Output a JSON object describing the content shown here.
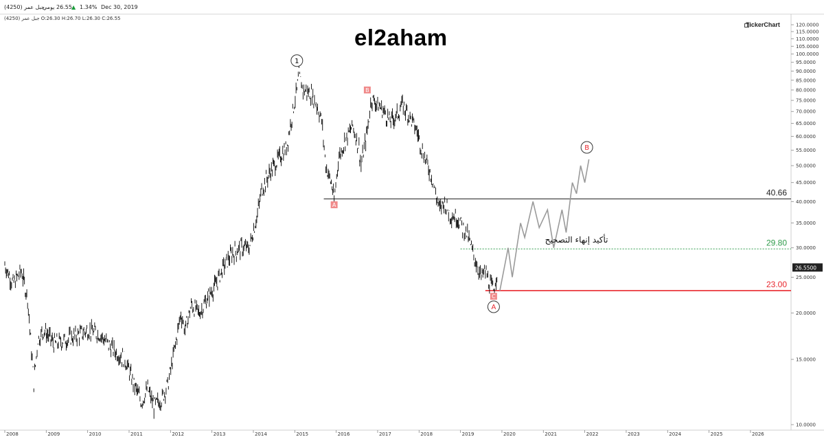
{
  "header": {
    "name": "(4250) جبل عمر",
    "period": "يومي",
    "last": "26.55",
    "change": "1.34%",
    "date": "Dec 30, 2019",
    "ohlc": "(4250) جبل عمر  O:26.30  H:26.70  L:26.30  C:26.55"
  },
  "watermark": "el2aham",
  "brand": "TickerChart",
  "colors": {
    "candles": "#000000",
    "projection": "#9a9a9a",
    "support": "#e8262d",
    "resistance": "#222222",
    "confirm": "#2e9b4a",
    "price_tag": "#222222"
  },
  "chart_data": {
    "type": "line",
    "y_scale": "log",
    "ylim": [
      10,
      120
    ],
    "y_ticks": [
      "10.0000",
      "15.0000",
      "20.0000",
      "25.0000",
      "30.0000",
      "35.0000",
      "40.0000",
      "45.0000",
      "50.0000",
      "55.0000",
      "60.0000",
      "65.0000",
      "70.0000",
      "75.0000",
      "80.0000",
      "85.0000",
      "90.0000",
      "95.0000",
      "100.0000",
      "105.0000",
      "110.0000",
      "115.0000",
      "120.0000"
    ],
    "x_ticks": [
      "2008",
      "2009",
      "2010",
      "2011",
      "2012",
      "2013",
      "2014",
      "2015",
      "2016",
      "2017",
      "2018",
      "2019",
      "2020",
      "2021",
      "2022",
      "2023",
      "2024",
      "2025",
      "2026"
    ],
    "series": [
      {
        "style": "price",
        "x": [
          2008.0,
          2008.2,
          2008.4,
          2008.55,
          2008.7,
          2008.8,
          2008.95,
          2009.2,
          2009.5,
          2009.8,
          2010.0,
          2010.3,
          2010.6,
          2010.9,
          2011.1,
          2011.3,
          2011.45,
          2011.6,
          2011.8,
          2011.95,
          2012.1,
          2012.25,
          2012.35,
          2012.5,
          2012.7,
          2012.9,
          2013.1,
          2013.3,
          2013.5,
          2013.7,
          2013.9,
          2014.1,
          2014.2,
          2014.4,
          2014.6,
          2014.8,
          2014.95,
          2015.05,
          2015.1,
          2015.2,
          2015.4,
          2015.55,
          2015.65,
          2015.75,
          2015.9,
          2015.95,
          2016.05,
          2016.2,
          2016.4,
          2016.55,
          2016.6,
          2016.75,
          2016.85,
          2017.0,
          2017.15,
          2017.3,
          2017.45,
          2017.6,
          2017.8,
          2017.95,
          2018.1,
          2018.3,
          2018.4,
          2018.5,
          2018.6,
          2018.75,
          2018.95,
          2019.05,
          2019.15,
          2019.3,
          2019.4,
          2019.5,
          2019.6,
          2019.7,
          2019.8,
          2019.9
        ],
        "y": [
          27,
          24,
          26,
          22,
          13,
          17,
          18,
          16.5,
          17,
          17.5,
          18,
          17.5,
          16,
          15,
          13,
          11.5,
          12.5,
          11.2,
          11.8,
          13,
          16,
          20,
          18,
          21,
          20,
          22,
          24,
          27,
          29,
          30,
          30,
          37,
          43,
          48,
          52,
          56,
          70,
          80,
          88,
          80,
          78,
          72,
          66,
          50,
          44,
          40,
          52,
          58,
          64,
          56,
          50,
          62,
          76,
          73,
          70,
          66,
          68,
          73,
          67,
          62,
          54,
          47,
          42,
          38,
          40,
          37,
          36,
          34,
          33,
          29,
          27,
          25,
          26,
          24,
          23,
          26.55
        ]
      },
      {
        "name": "projection",
        "style": "projection",
        "x": [
          2019.95,
          2020.15,
          2020.25,
          2020.45,
          2020.55,
          2020.75,
          2020.9,
          2021.1,
          2021.25,
          2021.45,
          2021.55,
          2021.7,
          2021.8,
          2021.9,
          2022.0,
          2022.1
        ],
        "y": [
          23,
          30,
          25,
          35,
          32,
          40,
          34,
          38,
          30,
          38,
          33,
          45,
          42,
          50,
          45,
          52
        ]
      }
    ],
    "levels": [
      {
        "label": "40.66",
        "y": 40.66,
        "x_start": 2015.7,
        "style": "resistance"
      },
      {
        "label": "29.80",
        "y": 29.8,
        "x_start": 2019.0,
        "style": "confirm"
      },
      {
        "label": "23.00",
        "y": 23.0,
        "x_start": 2019.6,
        "style": "support"
      }
    ],
    "annotations": [
      {
        "text": "1",
        "x": 2015.05,
        "y": 96,
        "style": "circle-black"
      },
      {
        "text": "B",
        "x": 2016.75,
        "y": 80,
        "style": "box-red"
      },
      {
        "text": "A",
        "x": 2015.95,
        "y": 39.2,
        "style": "box-red"
      },
      {
        "text": "C",
        "x": 2019.8,
        "y": 22.2,
        "style": "box-red"
      },
      {
        "text": "A",
        "x": 2019.8,
        "y": 20.8,
        "style": "circle-red"
      },
      {
        "text": "B",
        "x": 2022.05,
        "y": 56,
        "style": "circle-red"
      }
    ],
    "confirm_text": "تأكيد إنهاء التصحيح",
    "confirm_text_pos": {
      "x": 2021.8,
      "y": 31
    },
    "last_price": "26.5500"
  }
}
